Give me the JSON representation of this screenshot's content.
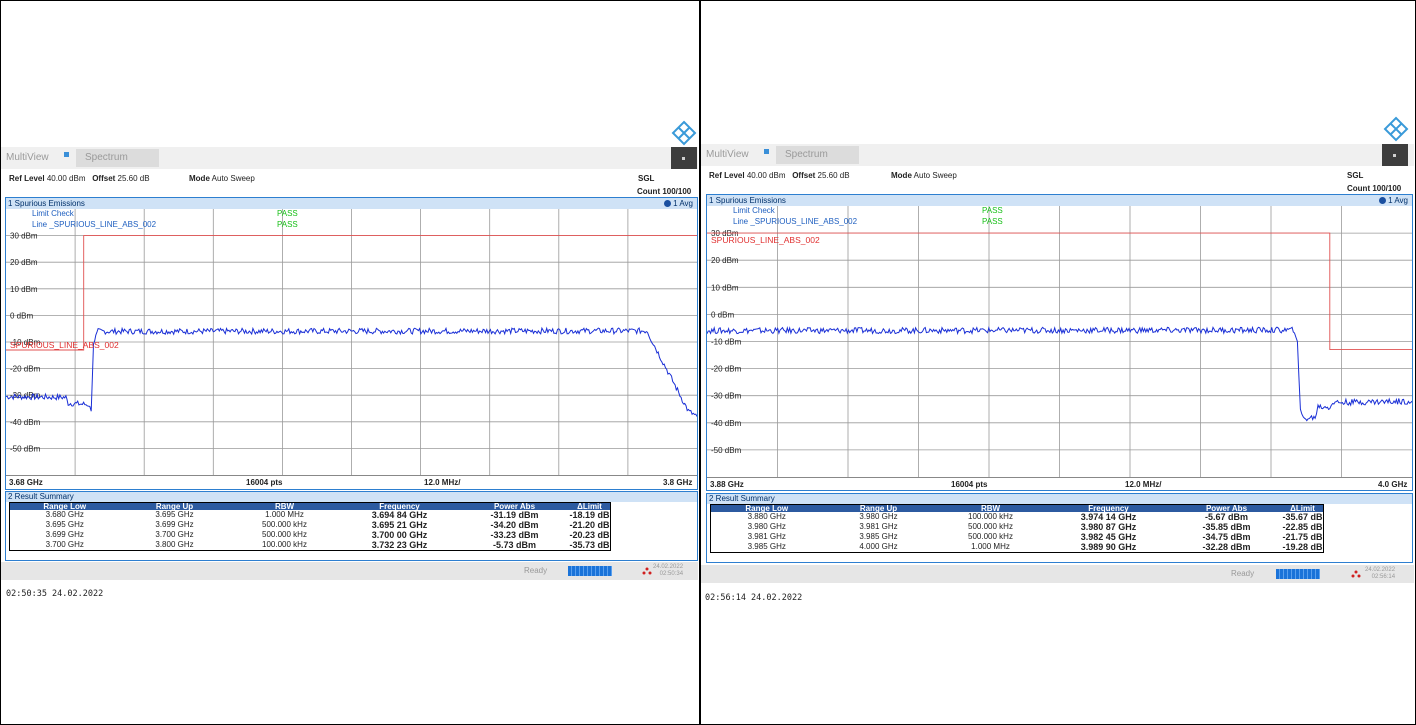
{
  "panels": [
    {
      "app": "MultiView",
      "tab": "Spectrum",
      "ref_level_label": "Ref Level",
      "ref_level_value": "40.00 dBm",
      "offset_label": "Offset",
      "offset_value": "25.60 dB",
      "mode_label": "Mode",
      "mode_value": "Auto Sweep",
      "sweep_mode": "SGL",
      "count": "Count 100/100",
      "window_title": "1 Spurious Emissions",
      "trace_label": "1 Avg",
      "limit_check_label": "Limit Check",
      "limit_check_result": "PASS",
      "line_label": "Line _SPURIOUS_LINE_ABS_002",
      "line_result": "PASS",
      "limit_line_name": "SPURIOUS_LINE_ABS_002",
      "y_ticks": [
        "30 dBm",
        "20 dBm",
        "10 dBm",
        "0 dBm",
        "-10 dBm",
        "-20 dBm",
        "-30 dBm",
        "-40 dBm",
        "-50 dBm"
      ],
      "x_start": "3.68 GHz",
      "points": "16004 pts",
      "span_per_div": "12.0 MHz/",
      "x_stop": "3.8 GHz",
      "summary_title": "2 Result Summary",
      "columns": [
        "Range Low",
        "Range Up",
        "RBW",
        "Frequency",
        "Power Abs",
        "ΔLimit"
      ],
      "rows": [
        [
          "3.680 GHz",
          "3.695 GHz",
          "1.000 MHz",
          "3.694 84 GHz",
          "-31.19 dBm",
          "-18.19 dB"
        ],
        [
          "3.695 GHz",
          "3.699 GHz",
          "500.000 kHz",
          "3.695 21 GHz",
          "-34.20 dBm",
          "-21.20 dB"
        ],
        [
          "3.699 GHz",
          "3.700 GHz",
          "500.000 kHz",
          "3.700 00 GHz",
          "-33.23 dBm",
          "-20.23 dB"
        ],
        [
          "3.700 GHz",
          "3.800 GHz",
          "100.000 kHz",
          "3.732 23 GHz",
          "-5.73 dBm",
          "-35.73 dB"
        ]
      ],
      "status": "Ready",
      "status_date": "24.02.2022",
      "status_time": "02:50:34",
      "timestamp": "02:50:35  24.02.2022"
    },
    {
      "app": "MultiView",
      "tab": "Spectrum",
      "ref_level_label": "Ref Level",
      "ref_level_value": "40.00 dBm",
      "offset_label": "Offset",
      "offset_value": "25.60 dB",
      "mode_label": "Mode",
      "mode_value": "Auto Sweep",
      "sweep_mode": "SGL",
      "count": "Count 100/100",
      "window_title": "1 Spurious Emissions",
      "trace_label": "1 Avg",
      "limit_check_label": "Limit Check",
      "limit_check_result": "PASS",
      "line_label": "Line _SPURIOUS_LINE_ABS_002",
      "line_result": "PASS",
      "limit_line_name": "SPURIOUS_LINE_ABS_002",
      "y_ticks": [
        "30 dBm",
        "20 dBm",
        "10 dBm",
        "0 dBm",
        "-10 dBm",
        "-20 dBm",
        "-30 dBm",
        "-40 dBm",
        "-50 dBm"
      ],
      "x_start": "3.88 GHz",
      "points": "16004 pts",
      "span_per_div": "12.0 MHz/",
      "x_stop": "4.0 GHz",
      "summary_title": "2 Result Summary",
      "columns": [
        "Range Low",
        "Range Up",
        "RBW",
        "Frequency",
        "Power Abs",
        "ΔLimit"
      ],
      "rows": [
        [
          "3.880 GHz",
          "3.980 GHz",
          "100.000 kHz",
          "3.974 14 GHz",
          "-5.67 dBm",
          "-35.67 dB"
        ],
        [
          "3.980 GHz",
          "3.981 GHz",
          "500.000 kHz",
          "3.980 87 GHz",
          "-35.85 dBm",
          "-22.85 dB"
        ],
        [
          "3.981 GHz",
          "3.985 GHz",
          "500.000 kHz",
          "3.982 45 GHz",
          "-34.75 dBm",
          "-21.75 dB"
        ],
        [
          "3.985 GHz",
          "4.000 GHz",
          "1.000 MHz",
          "3.989 90 GHz",
          "-32.28 dBm",
          "-19.28 dB"
        ]
      ],
      "status": "Ready",
      "status_date": "24.02.2022",
      "status_time": "02:56:14",
      "timestamp": "02:56:14  24.02.2022"
    }
  ],
  "chart_data": [
    {
      "type": "line",
      "title": "1 Spurious Emissions",
      "xlabel": "",
      "ylabel": "",
      "x_range_ghz": [
        3.68,
        3.8
      ],
      "ylim": [
        -60,
        40
      ],
      "grid": true,
      "series": [
        {
          "name": "1 Avg",
          "color": "#1a2fd6",
          "points": [
            [
              3.68,
              -30.5
            ],
            [
              3.6904,
              -30.8
            ],
            [
              3.6908,
              -33.0
            ],
            [
              3.6943,
              -33.5
            ],
            [
              3.6948,
              -36.0
            ],
            [
              3.6952,
              -10.0
            ],
            [
              3.696,
              -6.0
            ],
            [
              3.7914,
              -5.8
            ],
            [
              3.7918,
              -8.0
            ],
            [
              3.7985,
              -36.0
            ],
            [
              3.8,
              -38.0
            ]
          ]
        },
        {
          "name": "SPURIOUS_LINE_ABS_002",
          "color": "#e05050",
          "points": [
            [
              3.68,
              -13.0
            ],
            [
              3.6935,
              -13.0
            ],
            [
              3.6935,
              30.0
            ],
            [
              3.8,
              30.0
            ]
          ]
        }
      ]
    },
    {
      "type": "line",
      "title": "1 Spurious Emissions",
      "xlabel": "",
      "ylabel": "",
      "x_range_ghz": [
        3.88,
        4.0
      ],
      "ylim": [
        -60,
        40
      ],
      "grid": true,
      "series": [
        {
          "name": "1 Avg",
          "color": "#1a2fd6",
          "points": [
            [
              3.88,
              -6.0
            ],
            [
              3.98,
              -5.8
            ],
            [
              3.9805,
              -10.0
            ],
            [
              3.981,
              -36.0
            ],
            [
              3.9815,
              -38.5
            ],
            [
              3.9835,
              -38.0
            ],
            [
              3.984,
              -34.0
            ],
            [
              3.986,
              -34.2
            ],
            [
              3.9865,
              -32.5
            ],
            [
              4.0,
              -32.0
            ]
          ]
        },
        {
          "name": "SPURIOUS_LINE_ABS_002",
          "color": "#e05050",
          "points": [
            [
              3.88,
              30.0
            ],
            [
              3.986,
              30.0
            ],
            [
              3.986,
              -13.0
            ],
            [
              4.0,
              -13.0
            ]
          ]
        }
      ]
    }
  ]
}
